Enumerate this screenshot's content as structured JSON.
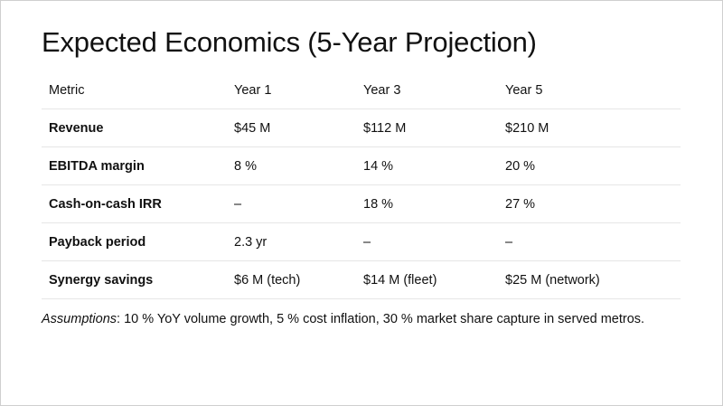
{
  "slide": {
    "title": "Expected Economics (5-Year Projection)"
  },
  "table": {
    "headers": [
      "Metric",
      "Year 1",
      "Year 3",
      "Year 5"
    ],
    "rows": [
      [
        "Revenue",
        "$45 M",
        "$112 M",
        "$210 M"
      ],
      [
        "EBITDA margin",
        "8 %",
        "14 %",
        "20 %"
      ],
      [
        "Cash-on-cash IRR",
        "–",
        "18 %",
        "27 %"
      ],
      [
        "Payback period",
        "2.3 yr",
        "–",
        "–"
      ],
      [
        "Synergy savings",
        "$6 M (tech)",
        "$14 M (fleet)",
        "$25 M (network)"
      ]
    ]
  },
  "footnote": {
    "label": "Assumptions",
    "text": ": 10 % YoY volume growth, 5 % cost inflation, 30 % market share capture in served metros."
  }
}
